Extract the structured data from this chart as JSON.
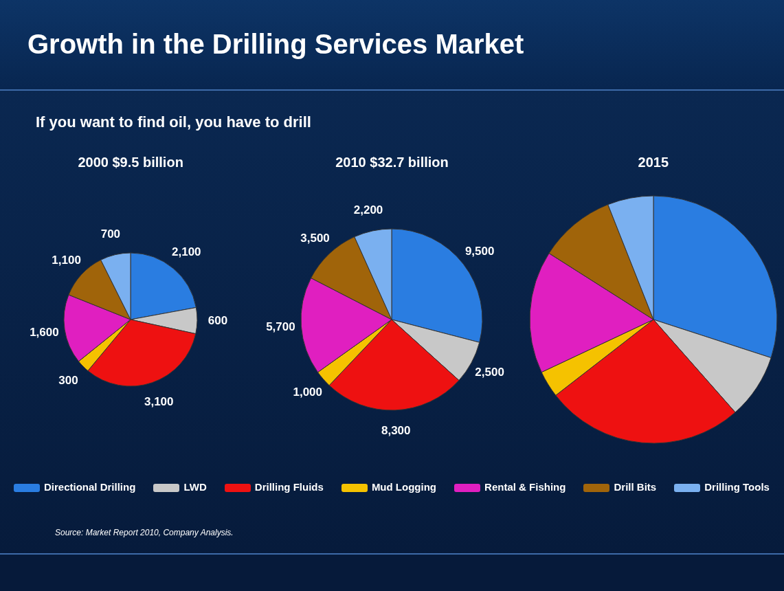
{
  "chart_data": [
    {
      "type": "other",
      "title": "Growth in the Drilling Services Market",
      "subtitle": "If you want to find oil, you have to drill"
    },
    {
      "type": "pie",
      "title": "2000  $9.5 billion",
      "categories": [
        "Directional Drilling",
        "LWD",
        "Drilling Fluids",
        "Mud Logging",
        "Rental & Fishing",
        "Drill Bits",
        "Drilling Tools"
      ],
      "values": [
        2100,
        600,
        3100,
        300,
        1600,
        1100,
        700
      ],
      "value_labels": [
        "2,100",
        "600",
        "3,100",
        "300",
        "1,600",
        "1,100",
        "700"
      ],
      "colors": [
        "#2a7de1",
        "#c8c8c8",
        "#ee1111",
        "#f5c200",
        "#e01fc0",
        "#a0640a",
        "#7ab0f0"
      ],
      "legend": "bottom"
    },
    {
      "type": "pie",
      "title": "2010  $32.7 billion",
      "categories": [
        null,
        null,
        null,
        null,
        null,
        null,
        null
      ],
      "values": [
        9500,
        2500,
        8300,
        1000,
        5700,
        3500,
        2200
      ],
      "value_labels": [
        "9,500",
        "2,500",
        "8,300",
        "1,000",
        "5,700",
        "3,500",
        "2,200"
      ],
      "colors": [
        "#2a7de1",
        "#c8c8c8",
        "#ee1111",
        "#f5c200",
        "#e01fc0",
        "#a0640a",
        "#7ab0f0"
      ]
    },
    {
      "type": "pie",
      "title": "2015",
      "categories": [
        null,
        null,
        null,
        null,
        null,
        null,
        null
      ],
      "values": [
        30,
        8.5,
        26,
        3.5,
        16,
        10,
        6
      ],
      "colors": [
        "#2a7de1",
        "#c8c8c8",
        "#ee1111",
        "#f5c200",
        "#e01fc0",
        "#a0640a",
        "#7ab0f0"
      ]
    },
    {
      "type": "other",
      "annotations": [
        "Source: Market Report 2010, Company Analysis."
      ]
    }
  ]
}
